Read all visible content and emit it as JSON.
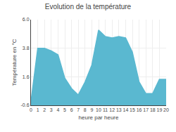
{
  "chart_data": {
    "type": "area",
    "title": "Evolution de la température",
    "xlabel": "heure par heure",
    "ylabel": "Température en °C",
    "x": [
      0,
      1,
      2,
      3,
      4,
      5,
      6,
      7,
      8,
      9,
      10,
      11,
      12,
      13,
      14,
      15,
      16,
      17,
      18,
      19,
      20
    ],
    "series": [
      {
        "color": "#5ab8d0",
        "values": [
          -0.3,
          3.8,
          3.8,
          3.6,
          3.3,
          1.5,
          0.7,
          0.2,
          1.2,
          2.5,
          5.2,
          4.7,
          4.6,
          4.7,
          4.6,
          3.5,
          1.2,
          0.3,
          0.3,
          1.4,
          1.4
        ]
      }
    ],
    "xlim": [
      0,
      20
    ],
    "xticks": [
      0,
      1,
      2,
      3,
      4,
      5,
      6,
      7,
      8,
      9,
      10,
      11,
      12,
      13,
      14,
      15,
      16,
      17,
      18,
      19,
      20
    ],
    "ylim": [
      -0.6,
      6.0
    ],
    "yticks": [
      -0.6,
      1.6,
      3.8,
      {
        "value": 6.0,
        "label": "6.0"
      }
    ],
    "grid": true
  }
}
